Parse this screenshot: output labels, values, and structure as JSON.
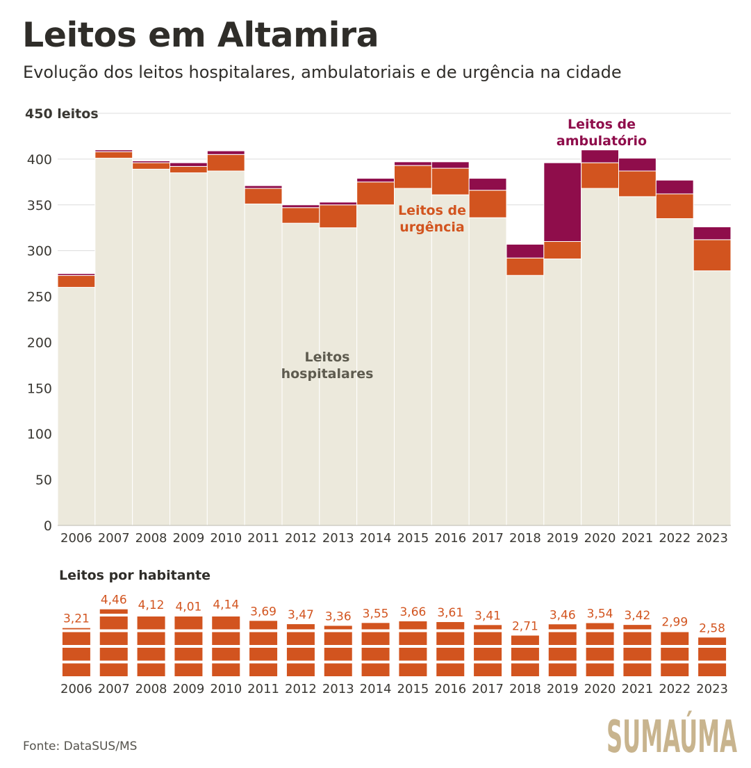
{
  "title": "Leitos em Altamira",
  "subtitle": "Evolução dos leitos hospitalares, ambulatoriais e de urgência na cidade",
  "source": "Fonte: DataSUS/MS",
  "logo_text": "SUMAÚMA",
  "colors": {
    "hospitalares": "#ece9dc",
    "urgencia": "#d2541f",
    "ambulatorio": "#8f0d4b",
    "label_hospitalares": "#5e5b4f",
    "label_urgencia": "#d2541f",
    "label_ambulatorio": "#8f0d4b",
    "grid": "#dcdcdc",
    "logo": "#c8b48e"
  },
  "chart_data": [
    {
      "type": "bar",
      "stacked": true,
      "ylabel_top": "450 leitos",
      "ylim": [
        0,
        450
      ],
      "yticks": [
        0,
        50,
        100,
        150,
        200,
        250,
        300,
        350,
        400
      ],
      "categories": [
        "2006",
        "2007",
        "2008",
        "2009",
        "2010",
        "2011",
        "2012",
        "2013",
        "2014",
        "2015",
        "2016",
        "2017",
        "2018",
        "2019",
        "2020",
        "2021",
        "2022",
        "2023"
      ],
      "series": [
        {
          "name": "Leitos hospitalares",
          "key": "hospitalares",
          "values": [
            260,
            401,
            389,
            385,
            387,
            351,
            330,
            325,
            350,
            368,
            361,
            336,
            273,
            291,
            368,
            359,
            335,
            278
          ]
        },
        {
          "name": "Leitos de urgência",
          "key": "urgencia",
          "values": [
            13,
            7,
            7,
            7,
            18,
            17,
            17,
            25,
            25,
            25,
            29,
            30,
            19,
            19,
            28,
            28,
            27,
            34
          ]
        },
        {
          "name": "Leitos de ambulatório",
          "key": "ambulatorio",
          "values": [
            2,
            2,
            2,
            4,
            4,
            3,
            3,
            3,
            4,
            4,
            7,
            13,
            15,
            86,
            14,
            14,
            15,
            14
          ]
        }
      ],
      "series_labels": [
        {
          "key": "hospitalares",
          "lines": [
            "Leitos",
            "hospitalares"
          ]
        },
        {
          "key": "urgencia",
          "lines": [
            "Leitos de",
            "urgência"
          ]
        },
        {
          "key": "ambulatorio",
          "lines": [
            "Leitos de",
            "ambulatório"
          ]
        }
      ]
    },
    {
      "type": "bar",
      "title": "Leitos por habitante",
      "categories": [
        "2006",
        "2007",
        "2008",
        "2009",
        "2010",
        "2011",
        "2012",
        "2013",
        "2014",
        "2015",
        "2016",
        "2017",
        "2018",
        "2019",
        "2020",
        "2021",
        "2022",
        "2023"
      ],
      "values": [
        3.21,
        4.46,
        4.12,
        4.01,
        4.14,
        3.69,
        3.47,
        3.36,
        3.55,
        3.66,
        3.61,
        3.41,
        2.71,
        3.46,
        3.54,
        3.42,
        2.99,
        2.58
      ],
      "value_labels": [
        "3,21",
        "4,46",
        "4,12",
        "4,01",
        "4,14",
        "3,69",
        "3,47",
        "3,36",
        "3,55",
        "3,66",
        "3,61",
        "3,41",
        "2,71",
        "3,46",
        "3,54",
        "3,42",
        "2,99",
        "2,58"
      ]
    }
  ]
}
